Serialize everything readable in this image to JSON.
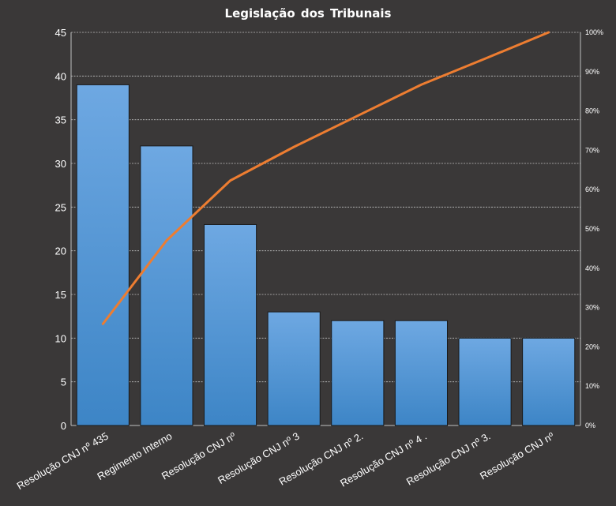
{
  "chart_data": {
    "type": "bar",
    "title": "Legislação dos Tribunais",
    "categories": [
      "Resolução CNJ nº 435",
      "Regimento Interno",
      "Resolução CNJ nº",
      "Resolução CNJ nº 3",
      "Resolução CNJ nº 2.",
      "Resolução CNJ nº 4 .",
      "Resolução CNJ nº 3.",
      "Resolução CNJ nº"
    ],
    "series": [
      {
        "type": "bar",
        "values": [
          39,
          32,
          23,
          13,
          12,
          12,
          10,
          10
        ]
      },
      {
        "type": "line",
        "axis": "right",
        "values": [
          0.2585,
          0.4706,
          0.623,
          0.7086,
          0.7878,
          0.8669,
          0.933,
          1.0
        ]
      }
    ],
    "ylim": [
      0,
      45
    ],
    "yticks": [
      0,
      5,
      10,
      15,
      20,
      25,
      30,
      35,
      40,
      45
    ],
    "y2lim": [
      0,
      1
    ],
    "y2ticks": [
      "0%",
      "10%",
      "20%",
      "30%",
      "40%",
      "50%",
      "60%",
      "70%",
      "80%",
      "90%",
      "100%"
    ],
    "grid": true,
    "legend": "none",
    "colors": {
      "background": "#3a3838",
      "bar_top": "#6ea8e2",
      "bar_bottom": "#3d85c6",
      "bar_border": "#1a1a1a",
      "line": "#ed7d31",
      "grid": "#bfbfbf",
      "text": "#ffffff"
    }
  }
}
